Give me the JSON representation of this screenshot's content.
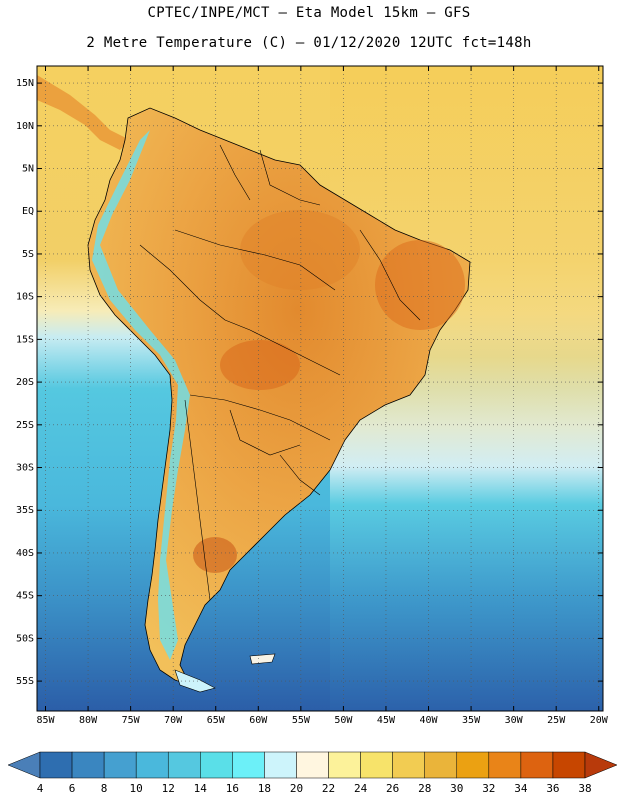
{
  "header": {
    "title_line1": "CPTEC/INPE/MCT –  Eta Model 15km – GFS",
    "title_line2": "2 Metre Temperature (C) – 01/12/2020 12UTC fct=148h"
  },
  "axes": {
    "lat_labels": [
      "15N",
      "10N",
      "5N",
      "EQ",
      "5S",
      "10S",
      "15S",
      "20S",
      "25S",
      "30S",
      "35S",
      "40S",
      "45S",
      "50S",
      "55S"
    ],
    "lat_values": [
      15,
      10,
      5,
      0,
      -5,
      -10,
      -15,
      -20,
      -25,
      -30,
      -35,
      -40,
      -45,
      -50,
      -55
    ],
    "lon_labels": [
      "85W",
      "80W",
      "75W",
      "70W",
      "65W",
      "60W",
      "55W",
      "50W",
      "45W",
      "40W",
      "35W",
      "30W",
      "25W",
      "20W"
    ],
    "lon_values": [
      -85,
      -80,
      -75,
      -70,
      -65,
      -60,
      -55,
      -50,
      -45,
      -40,
      -35,
      -30,
      -25,
      -20
    ],
    "lon_range": [
      -86,
      -19.5
    ],
    "lat_range": [
      -58.5,
      17
    ]
  },
  "colorbar": {
    "ticks": [
      "4",
      "6",
      "8",
      "10",
      "12",
      "14",
      "16",
      "18",
      "20",
      "22",
      "24",
      "26",
      "28",
      "30",
      "32",
      "34",
      "36",
      "38"
    ],
    "low_color": "#4a7fb8",
    "high_color": "#b83a0b",
    "colors": [
      "#2e6eb0",
      "#3a86c0",
      "#45a0d0",
      "#4ab8dc",
      "#55c8e0",
      "#5adfe8",
      "#6cf0f8",
      "#cdf4fb",
      "#fff6e0",
      "#fcf29a",
      "#f7e36a",
      "#f2cc52",
      "#eab43a",
      "#eba112",
      "#e98418",
      "#dd6310",
      "#c74600"
    ]
  },
  "colors": {
    "ocean_deep": "#2b5ea8",
    "ocean_mid": "#3c8fc6",
    "ocean_light": "#4cc2dd",
    "land_warm": "#eba844",
    "land_hot": "#e0832a",
    "tropics_sea": "#f5c850",
    "andes_cold": "#6ae0ef"
  }
}
